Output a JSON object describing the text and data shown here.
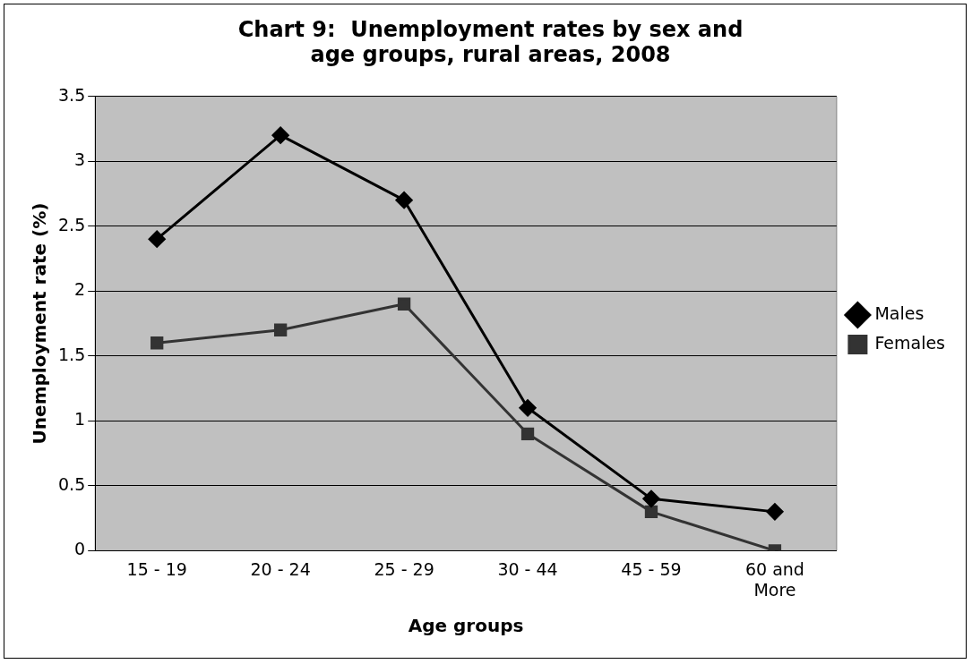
{
  "chart_data": {
    "type": "line",
    "title": "Chart 9:  Unemployment rates by sex and age groups, rural areas, 2008",
    "xlabel": "Age groups",
    "ylabel": "Unemployment rate (%)",
    "categories": [
      "15 - 19",
      "20 - 24",
      "25 - 29",
      "30 - 44",
      "45 - 59",
      "60 and More"
    ],
    "series": [
      {
        "name": "Males",
        "color": "#000000",
        "marker": "diamond",
        "values": [
          2.4,
          3.2,
          2.7,
          1.1,
          0.4,
          0.3
        ]
      },
      {
        "name": "Females",
        "color": "#333333",
        "marker": "square",
        "values": [
          1.6,
          1.7,
          1.9,
          0.9,
          0.3,
          0.0
        ]
      }
    ],
    "ylim": [
      0,
      3.5
    ],
    "yticks": [
      0,
      0.5,
      1,
      1.5,
      2,
      2.5,
      3,
      3.5
    ],
    "grid": "y",
    "legend": "right"
  }
}
